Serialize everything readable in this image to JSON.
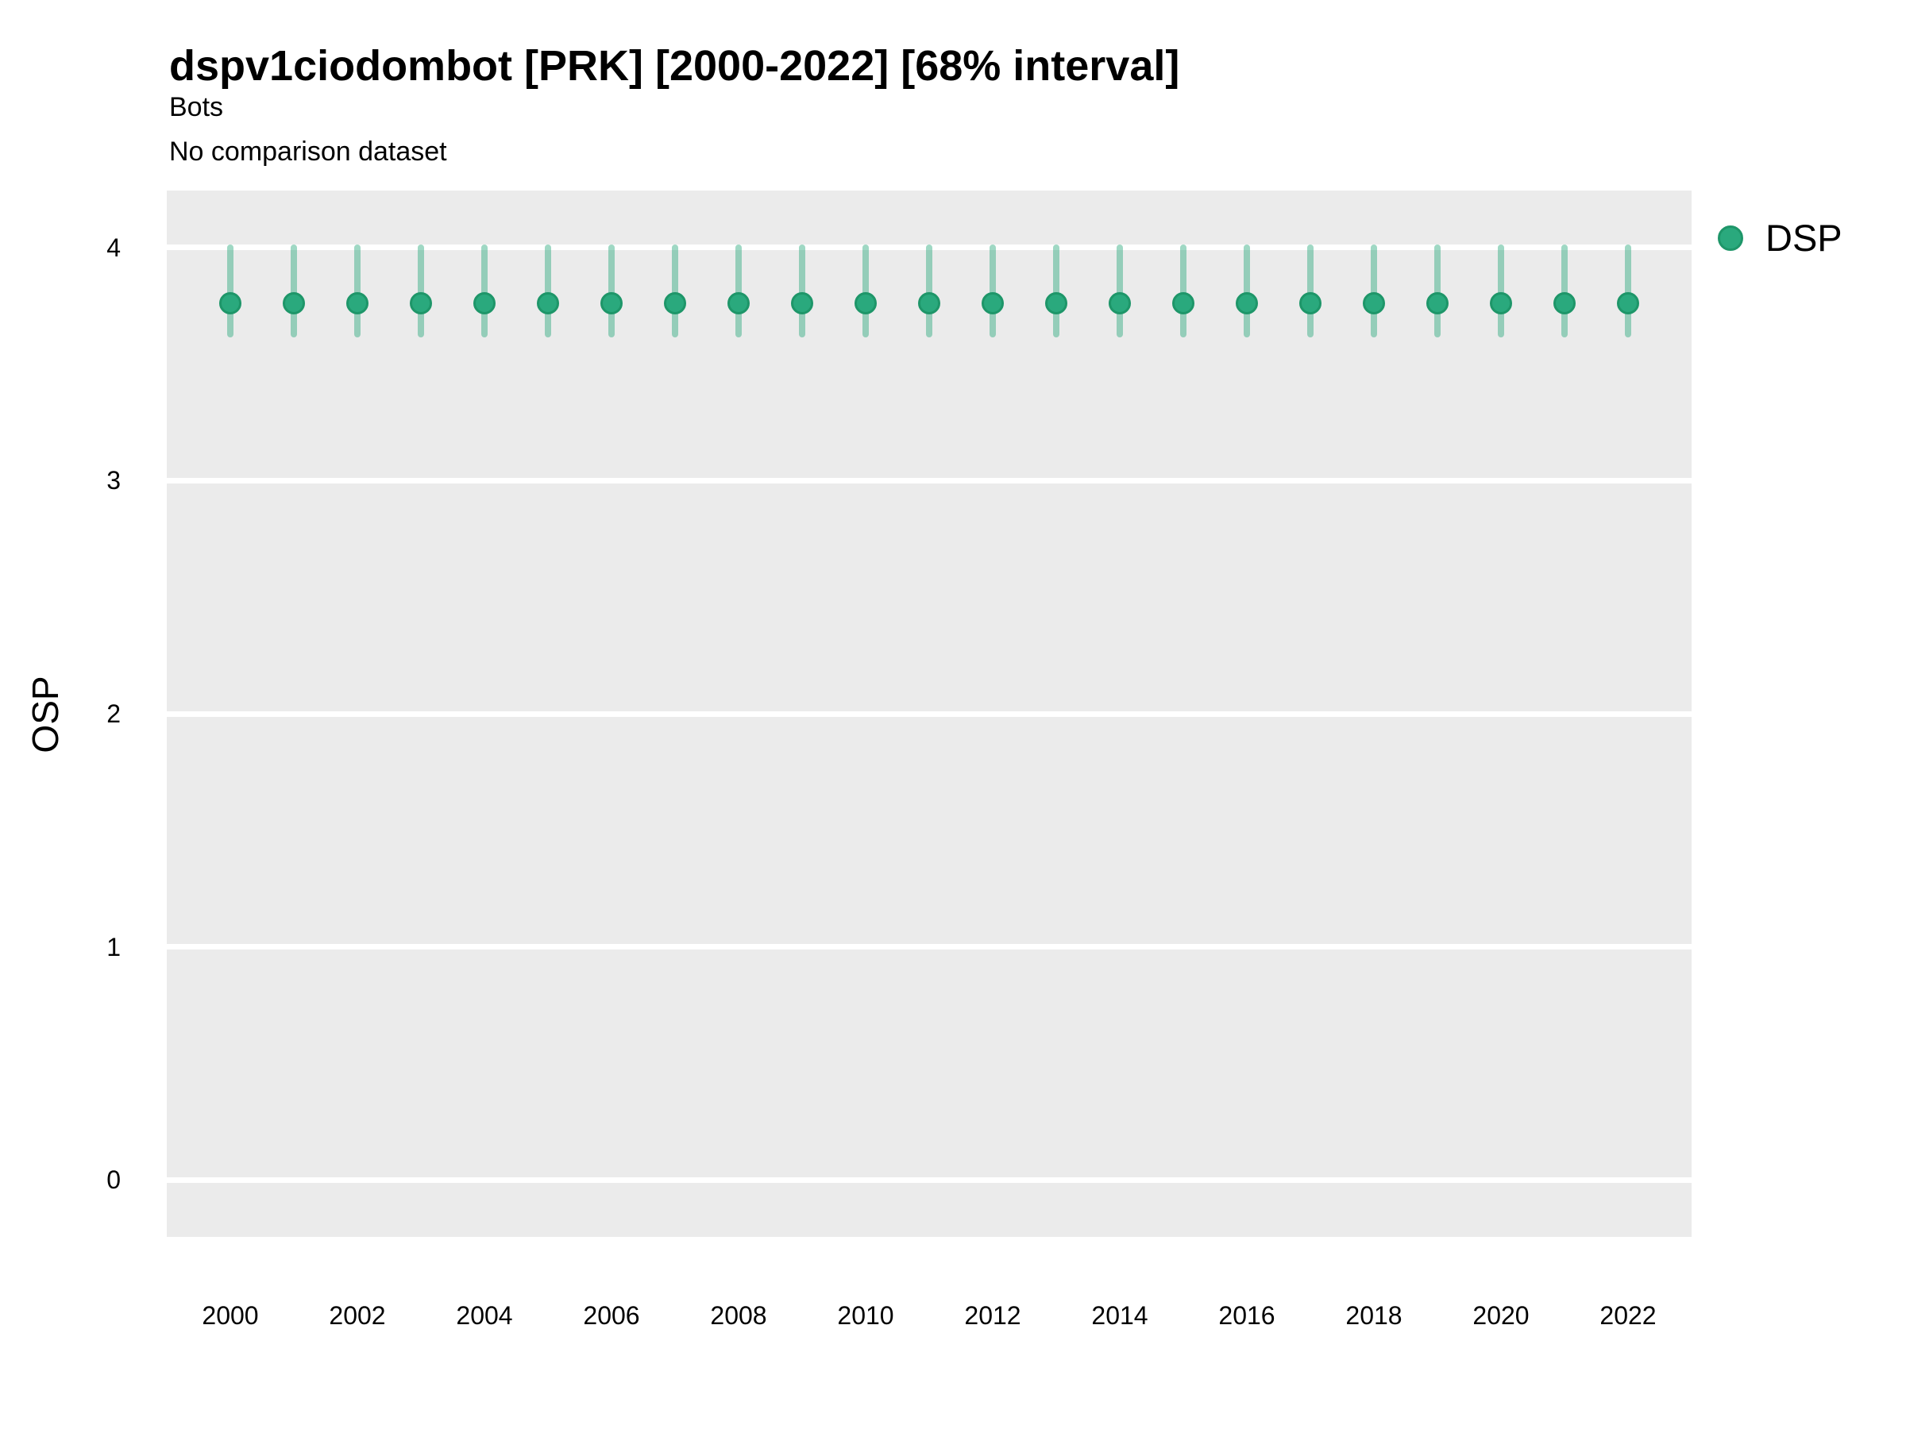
{
  "header": {
    "title": "dspv1ciodombot [PRK] [2000-2022] [68% interval]",
    "subtitle": "Bots",
    "comparison_note": "No comparison dataset"
  },
  "legend": {
    "items": [
      {
        "label": "DSP",
        "color": "#2aa97d",
        "stroke": "#1e9669"
      }
    ]
  },
  "chart_data": {
    "type": "scatter",
    "title": "dspv1ciodombot [PRK] [2000-2022] [68% interval]",
    "subtitle": "Bots",
    "note": "No comparison dataset",
    "xlabel": "",
    "ylabel": "OSP",
    "interval_level": "68%",
    "x": [
      2000,
      2001,
      2002,
      2003,
      2004,
      2005,
      2006,
      2007,
      2008,
      2009,
      2010,
      2011,
      2012,
      2013,
      2014,
      2015,
      2016,
      2017,
      2018,
      2019,
      2020,
      2021,
      2022
    ],
    "series": [
      {
        "name": "DSP",
        "estimates": [
          3.76,
          3.76,
          3.76,
          3.76,
          3.76,
          3.76,
          3.76,
          3.76,
          3.76,
          3.76,
          3.76,
          3.76,
          3.76,
          3.76,
          3.76,
          3.76,
          3.76,
          3.76,
          3.76,
          3.76,
          3.76,
          3.76,
          3.76
        ],
        "interval_low": [
          3.63,
          3.63,
          3.63,
          3.63,
          3.63,
          3.63,
          3.63,
          3.63,
          3.63,
          3.63,
          3.63,
          3.63,
          3.63,
          3.63,
          3.63,
          3.63,
          3.63,
          3.63,
          3.63,
          3.63,
          3.63,
          3.63,
          3.63
        ],
        "interval_high": [
          4.0,
          4.0,
          4.0,
          4.0,
          4.0,
          4.0,
          4.0,
          4.0,
          4.0,
          4.0,
          4.0,
          4.0,
          4.0,
          4.0,
          4.0,
          4.0,
          4.0,
          4.0,
          4.0,
          4.0,
          4.0,
          4.0,
          4.0
        ]
      }
    ],
    "xticks": [
      2000,
      2002,
      2004,
      2006,
      2008,
      2010,
      2012,
      2014,
      2016,
      2018,
      2020,
      2022
    ],
    "yticks": [
      0,
      1,
      2,
      3,
      4
    ],
    "ylim": [
      -0.245,
      4.245
    ],
    "xlim_years": [
      1999.0,
      2023.0
    ],
    "grid": "horizontal-major-only",
    "legend_position": "right",
    "colors": {
      "point": "#2aa97d",
      "point_stroke": "#1e9669",
      "interval": "#2aa97d",
      "interval_opacity": 0.45,
      "panel_background": "#ebebeb",
      "gridline": "#ffffff",
      "text": "#000000"
    }
  }
}
